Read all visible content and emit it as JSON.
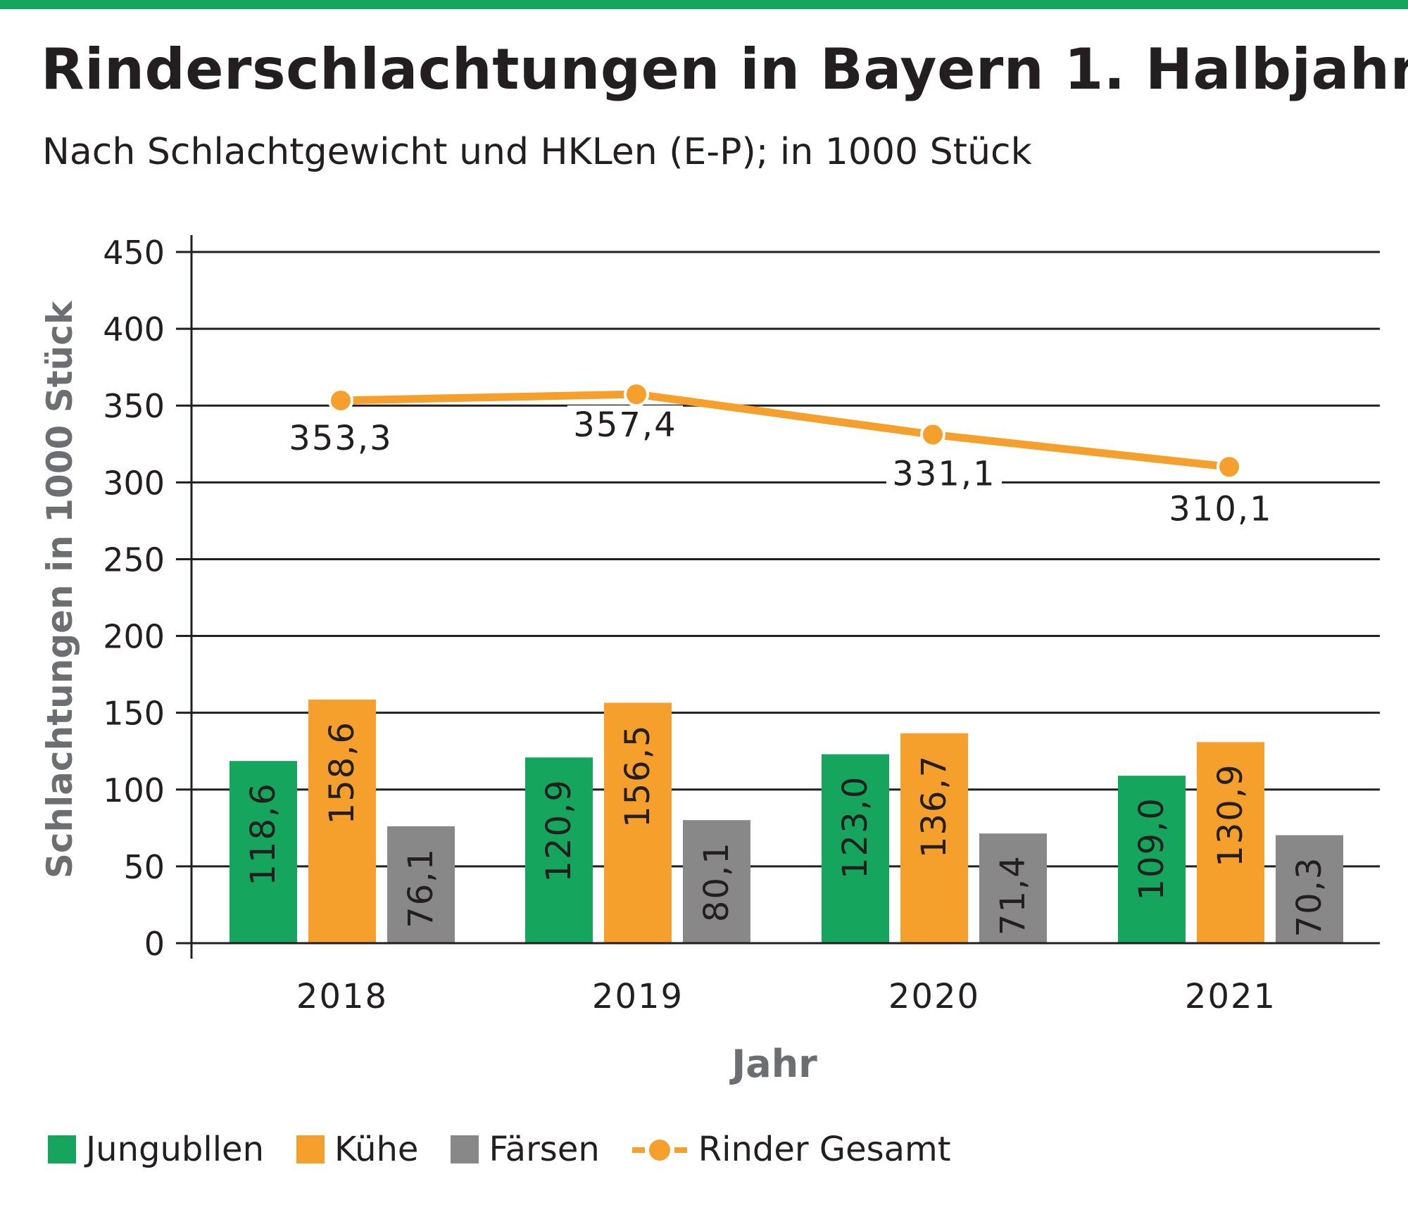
{
  "colors": {
    "brand": "#16a55c",
    "jungbullen": "#16a55c",
    "kuehe": "#f5a02c",
    "faersen": "#888888",
    "gesamt": "#f5a02c",
    "grid": "#231f20"
  },
  "title": "Rinderschlachtungen in Bayern 1. Halbjahr",
  "subtitle": "Nach Schlachtgewicht und HKLen (E-P); in 1000 Stück",
  "chart_data": {
    "type": "bar",
    "categories": [
      "2018",
      "2019",
      "2020",
      "2021"
    ],
    "xlabel": "Jahr",
    "ylabel": "Schlachtungen in 1000 Stück",
    "ylim": [
      0,
      450
    ],
    "yticks": [
      0,
      50,
      100,
      150,
      200,
      250,
      300,
      350,
      400,
      450
    ],
    "grid": true,
    "legend_placement": "bottom",
    "series": [
      {
        "name": "Jungubllen",
        "type": "bar",
        "values": [
          118.6,
          120.9,
          123.0,
          109.0
        ],
        "labels": [
          "118,6",
          "120,9",
          "123,0",
          "109,0"
        ]
      },
      {
        "name": "Kühe",
        "type": "bar",
        "values": [
          158.6,
          156.5,
          136.7,
          130.9
        ],
        "labels": [
          "158,6",
          "156,5",
          "136,7",
          "130,9"
        ]
      },
      {
        "name": "Färsen",
        "type": "bar",
        "values": [
          76.1,
          80.1,
          71.4,
          70.3
        ],
        "labels": [
          "76,1",
          "80,1",
          "71,4",
          "70,3"
        ]
      },
      {
        "name": "Rinder Gesamt",
        "type": "line",
        "values": [
          353.3,
          357.4,
          331.1,
          310.1
        ],
        "labels": [
          "353,3",
          "357,4",
          "331,1",
          "310,1"
        ]
      }
    ]
  }
}
